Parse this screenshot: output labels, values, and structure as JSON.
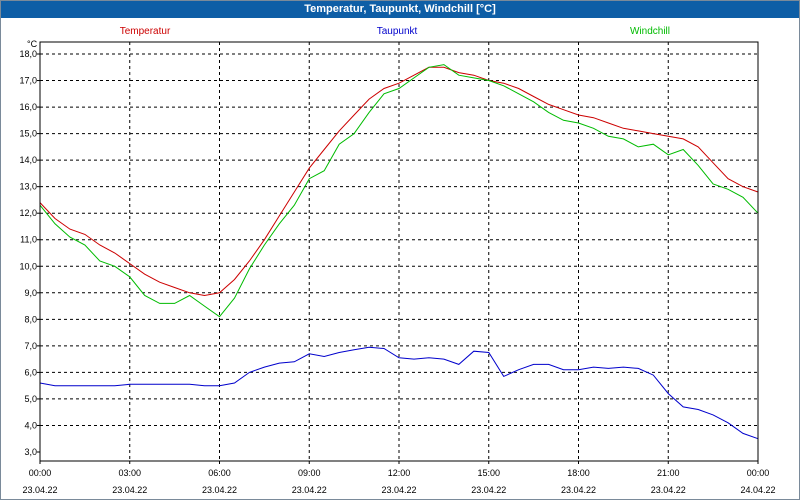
{
  "window": {
    "title": "Temperatur, Taupunkt, Windchill [°C]"
  },
  "chart_data": {
    "type": "line",
    "title": "Temperatur, Taupunkt, Windchill [°C]",
    "ylabel": "°C",
    "ylim": [
      2.8,
      18.5
    ],
    "y_ticks": [
      "3,0",
      "4,0",
      "5,0",
      "6,0",
      "7,0",
      "8,0",
      "9,0",
      "10,0",
      "11,0",
      "12,0",
      "13,0",
      "14,0",
      "15,0",
      "16,0",
      "17,0",
      "18,0"
    ],
    "x_ticks": [
      {
        "time": "00:00",
        "date": "23.04.22"
      },
      {
        "time": "03:00",
        "date": "23.04.22"
      },
      {
        "time": "06:00",
        "date": "23.04.22"
      },
      {
        "time": "09:00",
        "date": "23.04.22"
      },
      {
        "time": "12:00",
        "date": "23.04.22"
      },
      {
        "time": "15:00",
        "date": "23.04.22"
      },
      {
        "time": "18:00",
        "date": "23.04.22"
      },
      {
        "time": "21:00",
        "date": "23.04.22"
      },
      {
        "time": "00:00",
        "date": "24.04.22"
      }
    ],
    "x_range_hours": [
      0,
      24
    ],
    "grid": true,
    "legend": "top",
    "series": [
      {
        "name": "Temperatur",
        "color": "#cc0000",
        "x": [
          0,
          0.5,
          1,
          1.5,
          2,
          2.5,
          3,
          3.5,
          4,
          4.5,
          5,
          5.5,
          6,
          6.5,
          7,
          7.5,
          8,
          8.5,
          9,
          9.5,
          10,
          10.5,
          11,
          11.5,
          12,
          12.5,
          13,
          13.5,
          14,
          14.5,
          15,
          15.5,
          16,
          16.5,
          17,
          17.5,
          18,
          18.5,
          19,
          19.5,
          20,
          20.5,
          21,
          21.5,
          22,
          22.5,
          23,
          23.5,
          24
        ],
        "values": [
          12.4,
          11.8,
          11.4,
          11.2,
          10.8,
          10.5,
          10.1,
          9.7,
          9.4,
          9.2,
          9.0,
          8.9,
          9.0,
          9.5,
          10.2,
          11.0,
          11.9,
          12.8,
          13.7,
          14.4,
          15.1,
          15.7,
          16.3,
          16.7,
          16.9,
          17.2,
          17.5,
          17.5,
          17.3,
          17.2,
          17.0,
          16.9,
          16.7,
          16.4,
          16.1,
          15.9,
          15.7,
          15.6,
          15.4,
          15.2,
          15.1,
          15.0,
          14.9,
          14.8,
          14.5,
          13.9,
          13.3,
          13.0,
          12.8
        ]
      },
      {
        "name": "Taupunkt",
        "color": "#0000cc",
        "x": [
          0,
          0.5,
          1,
          1.5,
          2,
          2.5,
          3,
          3.5,
          4,
          4.5,
          5,
          5.5,
          6,
          6.5,
          7,
          7.5,
          8,
          8.5,
          9,
          9.5,
          10,
          10.5,
          11,
          11.5,
          12,
          12.5,
          13,
          13.5,
          14,
          14.5,
          15,
          15.5,
          16,
          16.5,
          17,
          17.5,
          18,
          18.5,
          19,
          19.5,
          20,
          20.5,
          21,
          21.5,
          22,
          22.5,
          23,
          23.5,
          24
        ],
        "values": [
          5.6,
          5.5,
          5.5,
          5.5,
          5.5,
          5.5,
          5.55,
          5.55,
          5.55,
          5.55,
          5.55,
          5.5,
          5.5,
          5.6,
          6.0,
          6.2,
          6.35,
          6.4,
          6.7,
          6.6,
          6.75,
          6.85,
          6.95,
          6.9,
          6.55,
          6.5,
          6.55,
          6.5,
          6.3,
          6.8,
          6.75,
          5.85,
          6.1,
          6.3,
          6.3,
          6.1,
          6.1,
          6.2,
          6.15,
          6.2,
          6.15,
          5.9,
          5.2,
          4.7,
          4.6,
          4.4,
          4.1,
          3.7,
          3.5
        ]
      },
      {
        "name": "Windchill",
        "color": "#00bb00",
        "x": [
          0,
          0.5,
          1,
          1.5,
          2,
          2.5,
          3,
          3.5,
          4,
          4.5,
          5,
          5.5,
          6,
          6.5,
          7,
          7.5,
          8,
          8.5,
          9,
          9.5,
          10,
          10.5,
          11,
          11.5,
          12,
          12.5,
          13,
          13.5,
          14,
          14.5,
          15,
          15.5,
          16,
          16.5,
          17,
          17.5,
          18,
          18.5,
          19,
          19.5,
          20,
          20.5,
          21,
          21.5,
          22,
          22.5,
          23,
          23.5,
          24
        ],
        "values": [
          12.3,
          11.6,
          11.1,
          10.8,
          10.2,
          10.0,
          9.6,
          8.9,
          8.6,
          8.6,
          8.9,
          8.5,
          8.1,
          8.8,
          9.9,
          10.8,
          11.6,
          12.3,
          13.3,
          13.6,
          14.6,
          15.0,
          15.8,
          16.5,
          16.7,
          17.1,
          17.5,
          17.6,
          17.2,
          17.1,
          17.0,
          16.8,
          16.5,
          16.2,
          15.8,
          15.5,
          15.4,
          15.2,
          14.9,
          14.8,
          14.5,
          14.6,
          14.2,
          14.4,
          13.8,
          13.1,
          12.9,
          12.6,
          12.0
        ]
      }
    ]
  }
}
